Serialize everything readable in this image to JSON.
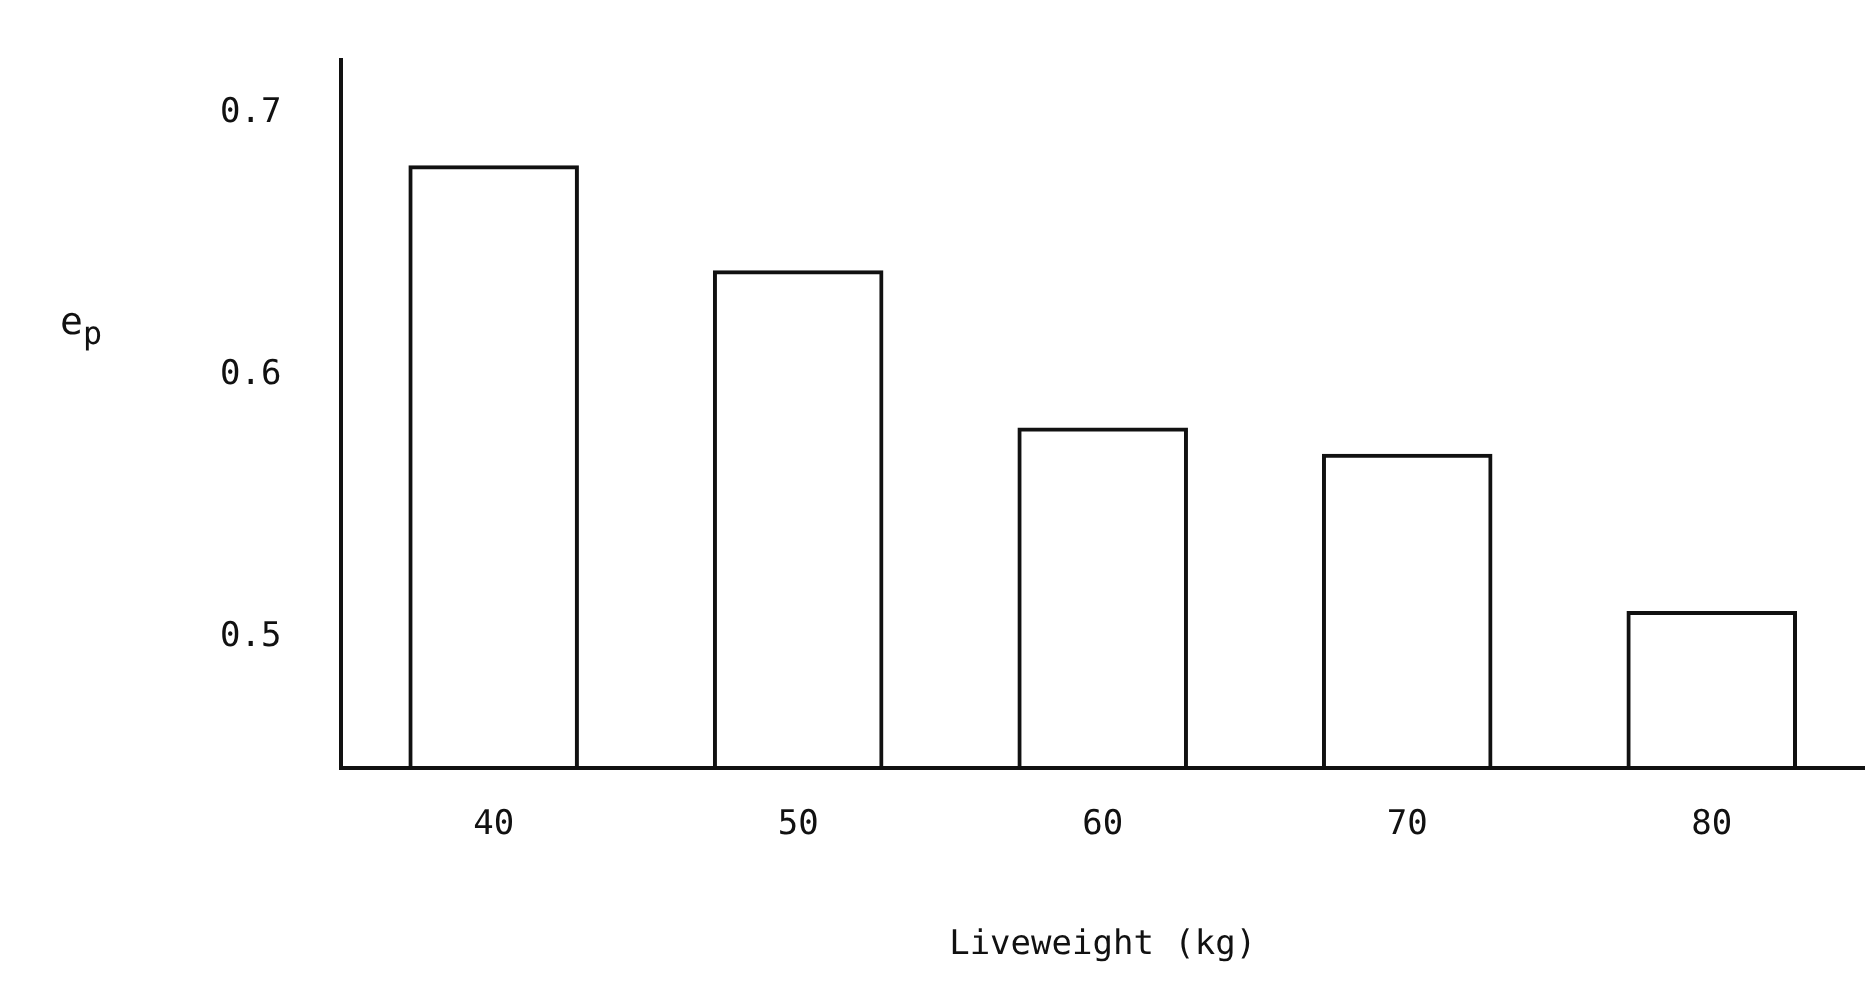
{
  "chart_data": {
    "type": "bar",
    "xlabel": "Liveweight (kg)",
    "ylabel": "e$_{p}$",
    "categories": [
      "40",
      "50",
      "60",
      "70",
      "80"
    ],
    "values": [
      0.68,
      0.64,
      0.58,
      0.57,
      0.51
    ],
    "color": "#111111",
    "ylim": [
      0.45,
      0.72
    ],
    "yticks": [
      0.5,
      0.6,
      0.7
    ],
    "grid": false,
    "legend": false
  }
}
